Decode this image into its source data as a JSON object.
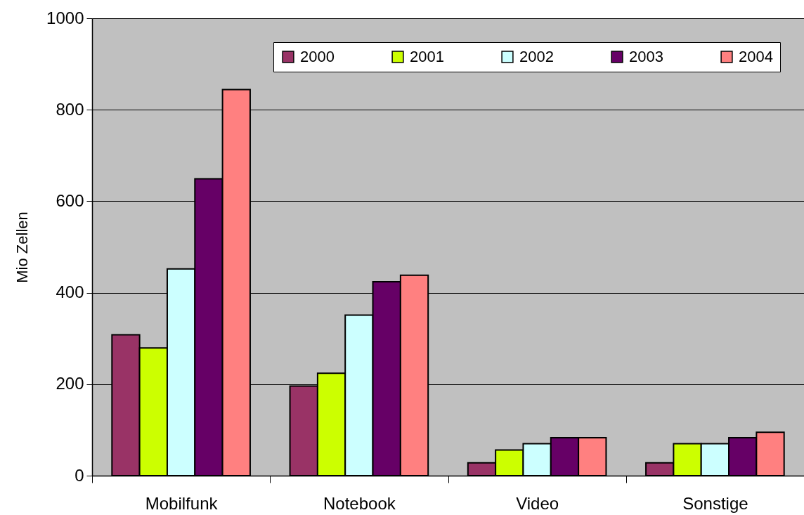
{
  "chart_data": {
    "type": "bar",
    "ylabel": "Mio Zellen",
    "categories": [
      "Mobilfunk",
      "Notebook",
      "Video",
      "Sonstige"
    ],
    "series": [
      {
        "name": "2000",
        "color": "#993366",
        "values": [
          308,
          196,
          28,
          28
        ]
      },
      {
        "name": "2001",
        "color": "#ccff00",
        "values": [
          279,
          224,
          56,
          70
        ]
      },
      {
        "name": "2002",
        "color": "#ccffff",
        "values": [
          452,
          351,
          70,
          70
        ]
      },
      {
        "name": "2003",
        "color": "#660066",
        "values": [
          649,
          424,
          83,
          83
        ]
      },
      {
        "name": "2004",
        "color": "#ff8080",
        "values": [
          844,
          438,
          83,
          95
        ]
      }
    ],
    "ylim": [
      0,
      1000
    ],
    "yticks": [
      0,
      200,
      400,
      600,
      800,
      {
        "value": 1000,
        "label": "1000"
      }
    ],
    "grid": "y",
    "legend": "top right"
  }
}
